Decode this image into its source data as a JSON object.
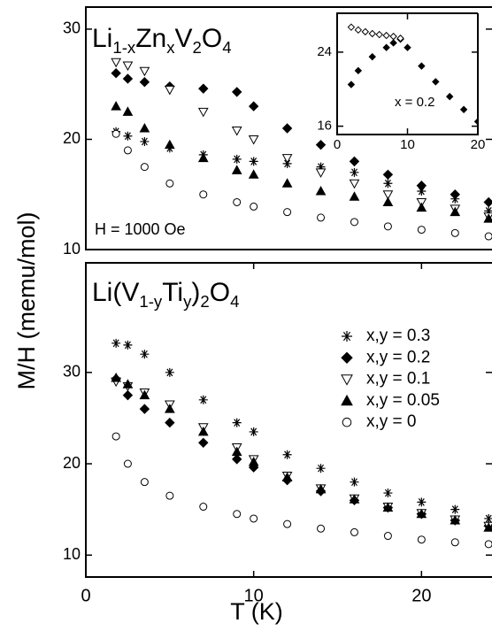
{
  "chart_data": [
    {
      "type": "scatter",
      "title": [
        "Li",
        "1-x",
        "Zn",
        "x",
        "V",
        "2",
        "O",
        "4"
      ],
      "annotation": "H = 1000 Oe",
      "ylabel": "M/H (memu/mol)",
      "xlim": [
        0,
        24.2
      ],
      "ylim": [
        10,
        32
      ],
      "yticks": [
        10,
        20,
        30
      ],
      "x": [
        1.8,
        2.5,
        3.5,
        5,
        7,
        9,
        10,
        12,
        14,
        16,
        18,
        20,
        22,
        24
      ],
      "series": [
        {
          "marker": "asterisk",
          "color": "#000000",
          "values": [
            20.7,
            20.3,
            19.8,
            19.2,
            18.6,
            18.2,
            18.0,
            17.8,
            17.5,
            17.0,
            16.0,
            15.3,
            14.6,
            13.5
          ]
        },
        {
          "marker": "diamond",
          "color": "#000000",
          "values": [
            26,
            25.5,
            25.2,
            24.8,
            24.6,
            24.3,
            23,
            21,
            19.5,
            18,
            16.8,
            15.8,
            15,
            14.3
          ]
        },
        {
          "marker": "triangle-down-open",
          "color": "#000000",
          "values": [
            27,
            26.7,
            26.2,
            24.5,
            22.5,
            20.8,
            20,
            18.3,
            17,
            16,
            15,
            14.3,
            13.7,
            13
          ]
        },
        {
          "marker": "triangle-up",
          "color": "#000000",
          "values": [
            23,
            22.5,
            21,
            19.5,
            18.3,
            17.2,
            16.8,
            16,
            15.3,
            14.8,
            14.3,
            13.8,
            13.4,
            12.8
          ]
        },
        {
          "marker": "circle-open",
          "color": "#000000",
          "values": [
            20.5,
            19,
            17.5,
            16,
            15,
            14.3,
            13.9,
            13.4,
            12.9,
            12.5,
            12.1,
            11.8,
            11.5,
            11.2
          ]
        }
      ]
    },
    {
      "type": "scatter",
      "title": [
        "Li(V",
        "1-y",
        "Ti",
        "y",
        ")",
        "2",
        "O",
        "4"
      ],
      "xlabel": "T (K)",
      "xlim": [
        0,
        24.2
      ],
      "xticks": [
        0,
        10,
        20
      ],
      "ylim": [
        7.6,
        42
      ],
      "yticks": [
        10,
        20,
        30
      ],
      "legend": "upper right",
      "x": [
        1.8,
        2.5,
        3.5,
        5,
        7,
        9,
        10,
        12,
        14,
        16,
        18,
        20,
        22,
        24
      ],
      "series": [
        {
          "name": "x,y = 0.3",
          "marker": "asterisk",
          "color": "#000000",
          "values": [
            33.2,
            33,
            32,
            30,
            27,
            24.5,
            23.5,
            21,
            19.5,
            18,
            16.8,
            15.8,
            15,
            14
          ]
        },
        {
          "name": "x,y = 0.2",
          "marker": "diamond",
          "color": "#000000",
          "values": [
            29.3,
            27.5,
            26,
            24.5,
            22.3,
            20.5,
            19.6,
            18.2,
            17,
            16,
            15.2,
            14.5,
            13.8,
            13.2
          ]
        },
        {
          "name": "x,y = 0.1",
          "marker": "triangle-down-open",
          "color": "#000000",
          "values": [
            29,
            28.5,
            27.8,
            26.5,
            24,
            21.8,
            20.5,
            18.7,
            17.3,
            16.2,
            15.3,
            14.6,
            13.9,
            13.2
          ]
        },
        {
          "name": "x,y = 0.05",
          "marker": "triangle-up",
          "color": "#000000",
          "values": [
            29.4,
            28.7,
            27.5,
            26,
            23.5,
            21.3,
            20.2,
            18.5,
            17.2,
            16.1,
            15.2,
            14.5,
            13.8,
            13
          ]
        },
        {
          "name": "x,y = 0",
          "marker": "circle-open",
          "color": "#000000",
          "values": [
            23,
            20,
            18,
            16.5,
            15.3,
            14.5,
            14,
            13.4,
            12.9,
            12.5,
            12.1,
            11.7,
            11.4,
            11.2
          ]
        }
      ]
    },
    {
      "type": "scatter",
      "annotation": "x = 0.2",
      "xlim": [
        0,
        20
      ],
      "xticks": [
        0,
        10,
        20
      ],
      "ylim": [
        15.1,
        28.2
      ],
      "yticks": [
        16,
        24
      ],
      "series": [
        {
          "marker": "diamond",
          "color": "#000000",
          "x": [
            2,
            3,
            5,
            7,
            8,
            9,
            10,
            12,
            14,
            16,
            18,
            20
          ],
          "values": [
            20.5,
            22,
            23.5,
            24.5,
            25,
            25.4,
            24.5,
            22.5,
            20.8,
            19.2,
            17.8,
            16.5
          ]
        },
        {
          "marker": "diamond-open",
          "color": "#000000",
          "x": [
            2,
            3,
            4,
            5,
            6,
            7,
            8,
            9
          ],
          "values": [
            26.7,
            26.4,
            26.2,
            26,
            25.9,
            25.8,
            25.7,
            25.5
          ]
        }
      ]
    }
  ]
}
